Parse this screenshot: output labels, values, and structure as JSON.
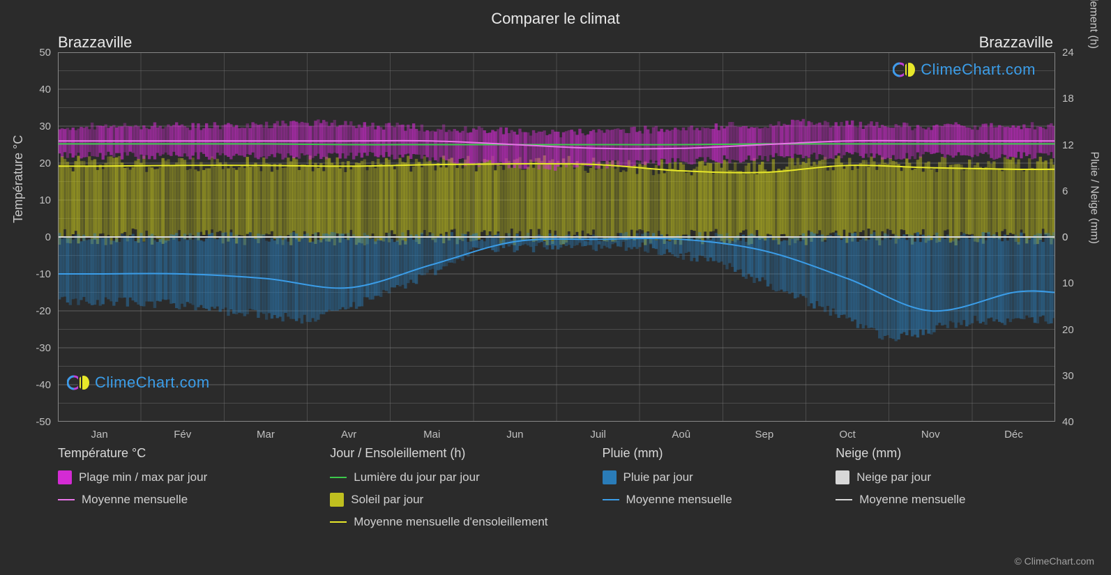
{
  "title": "Comparer le climat",
  "location_left": "Brazzaville",
  "location_right": "Brazzaville",
  "copyright": "© ClimeChart.com",
  "watermark_text": "ClimeChart.com",
  "watermark_color": "#3b9de8",
  "axis_labels": {
    "left": "Température °C",
    "right_top": "Jour / Ensoleillement (h)",
    "right_bottom": "Pluie / Neige (mm)"
  },
  "chart": {
    "type": "multi-axis-timeseries",
    "background_color": "#2b2b2b",
    "grid_color": "#888888",
    "grid_opacity": 0.35,
    "months": [
      "Jan",
      "Fév",
      "Mar",
      "Avr",
      "Mai",
      "Jun",
      "Juil",
      "Aoû",
      "Sep",
      "Oct",
      "Nov",
      "Déc"
    ],
    "y_left": {
      "min": -50,
      "max": 50,
      "step": 10
    },
    "y_right_top": {
      "min": 0,
      "max": 24,
      "step": 6,
      "temp_range": [
        0,
        50
      ]
    },
    "y_right_bottom": {
      "min": 0,
      "max": 40,
      "step": 10,
      "temp_range": [
        -50,
        0
      ]
    },
    "bands": {
      "temp_range": {
        "color": "#d42bd4",
        "opacity": 0.55,
        "min": [
          22,
          22,
          22,
          22,
          22,
          20,
          19,
          20,
          21,
          22,
          22,
          22
        ],
        "max": [
          30,
          30,
          30,
          31,
          30,
          29,
          28,
          29,
          30,
          31,
          30,
          30
        ]
      },
      "sunshine": {
        "color": "#bfbf1f",
        "opacity": 0.55,
        "top_hours": [
          9.5,
          9.5,
          9.5,
          9.5,
          9.5,
          9.5,
          9.5,
          9,
          9,
          9.5,
          9.5,
          9.5
        ]
      },
      "rain_daily": {
        "color": "#2a7cb8",
        "opacity": 0.5,
        "bottom_mm": [
          14,
          14,
          16,
          18,
          12,
          3,
          2,
          2,
          6,
          14,
          22,
          18
        ]
      }
    },
    "lines": {
      "temp_monthly": {
        "color": "#e875e8",
        "width": 2,
        "values": [
          26,
          26,
          26,
          26,
          26,
          25,
          24,
          24,
          25,
          26,
          26,
          26
        ]
      },
      "daylight": {
        "color": "#3cc94b",
        "width": 2,
        "values_hours": [
          12.1,
          12.1,
          12.1,
          12.0,
          12.0,
          12.0,
          12.0,
          12.0,
          12.1,
          12.1,
          12.1,
          12.1
        ]
      },
      "sun_monthly": {
        "color": "#e8e82a",
        "width": 2,
        "values_hours": [
          9.2,
          9.3,
          9.3,
          9.2,
          9.4,
          9.5,
          9.4,
          8.6,
          8.4,
          9.3,
          9.0,
          8.8
        ]
      },
      "rain_monthly": {
        "color": "#3b9de8",
        "width": 2,
        "values_mm": [
          8,
          8,
          9,
          11,
          6,
          1,
          0.5,
          0.5,
          3,
          9,
          16,
          12
        ]
      },
      "snow_monthly": {
        "color": "#d8d8d8",
        "width": 2,
        "values_mm": [
          0,
          0,
          0,
          0,
          0,
          0,
          0,
          0,
          0,
          0,
          0,
          0
        ]
      }
    }
  },
  "legend": {
    "columns": [
      {
        "header": "Température °C",
        "rows": [
          {
            "kind": "box",
            "color": "#d42bd4",
            "label": "Plage min / max par jour"
          },
          {
            "kind": "line",
            "color": "#e875e8",
            "label": "Moyenne mensuelle"
          }
        ]
      },
      {
        "header": "Jour / Ensoleillement (h)",
        "rows": [
          {
            "kind": "line",
            "color": "#3cc94b",
            "label": "Lumière du jour par jour"
          },
          {
            "kind": "box",
            "color": "#bfbf1f",
            "label": "Soleil par jour"
          },
          {
            "kind": "line",
            "color": "#e8e82a",
            "label": "Moyenne mensuelle d'ensoleillement"
          }
        ]
      },
      {
        "header": "Pluie (mm)",
        "rows": [
          {
            "kind": "box",
            "color": "#2a7cb8",
            "label": "Pluie par jour"
          },
          {
            "kind": "line",
            "color": "#3b9de8",
            "label": "Moyenne mensuelle"
          }
        ]
      },
      {
        "header": "Neige (mm)",
        "rows": [
          {
            "kind": "box",
            "color": "#d8d8d8",
            "label": "Neige par jour"
          },
          {
            "kind": "line",
            "color": "#d8d8d8",
            "label": "Moyenne mensuelle"
          }
        ]
      }
    ]
  }
}
